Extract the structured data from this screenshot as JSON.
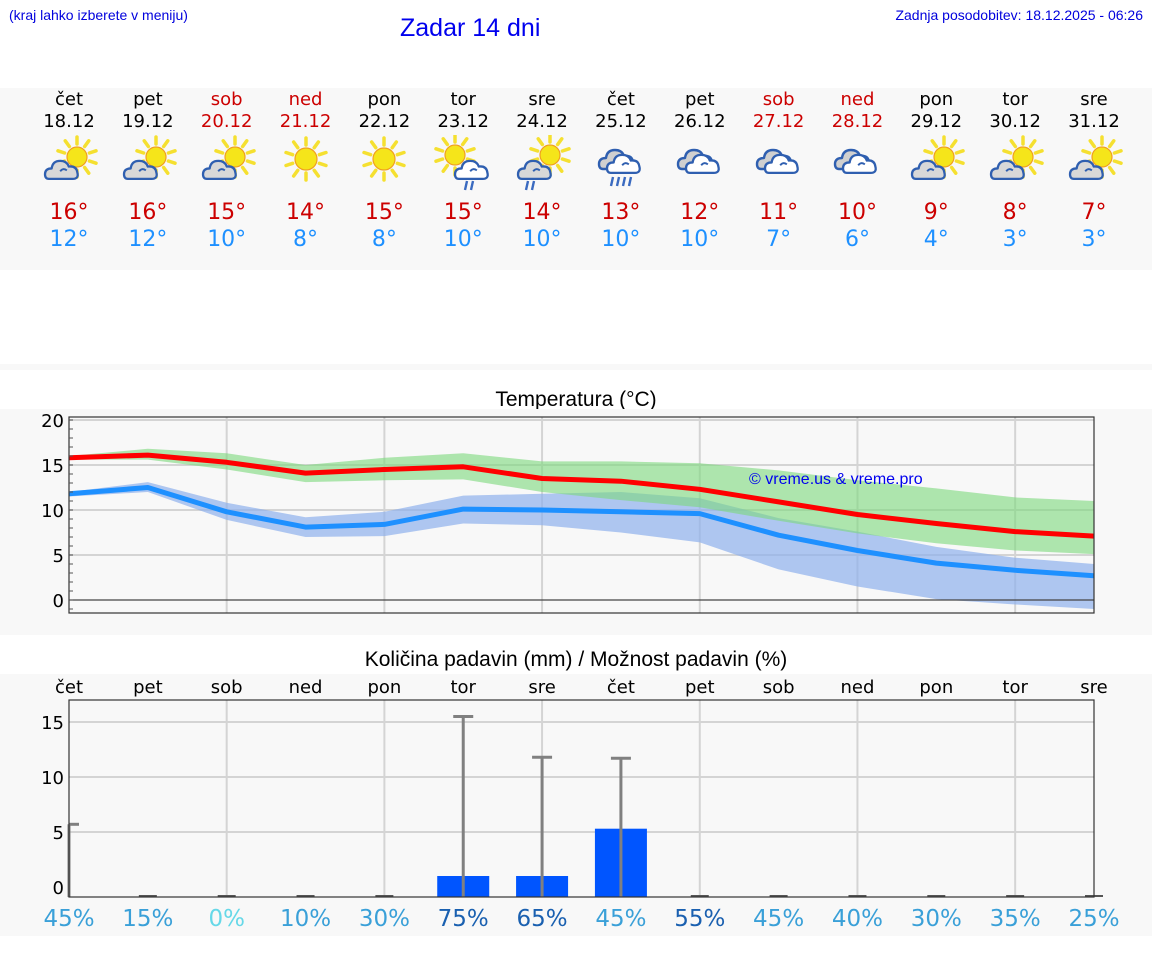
{
  "header": {
    "hint": "(kraj lahko izberete v meniju)",
    "title": "Zadar 14 dni",
    "updated": "Zadnja posodobitev: 18.12.2025 - 06:26"
  },
  "days": [
    {
      "name": "čet",
      "date": "18.12",
      "weekend": false,
      "icon": "partly-cloudy-icon",
      "max": "16°",
      "min": "12°"
    },
    {
      "name": "pet",
      "date": "19.12",
      "weekend": false,
      "icon": "partly-cloudy-icon",
      "max": "16°",
      "min": "12°"
    },
    {
      "name": "sob",
      "date": "20.12",
      "weekend": true,
      "icon": "partly-cloudy-icon",
      "max": "15°",
      "min": "10°"
    },
    {
      "name": "ned",
      "date": "21.12",
      "weekend": true,
      "icon": "sunny-icon",
      "max": "14°",
      "min": "8°"
    },
    {
      "name": "pon",
      "date": "22.12",
      "weekend": false,
      "icon": "sunny-icon",
      "max": "15°",
      "min": "8°"
    },
    {
      "name": "tor",
      "date": "23.12",
      "weekend": false,
      "icon": "sun-cloud-light-rain-icon",
      "max": "15°",
      "min": "10°"
    },
    {
      "name": "sre",
      "date": "24.12",
      "weekend": false,
      "icon": "partly-cloudy-light-rain-icon",
      "max": "14°",
      "min": "10°"
    },
    {
      "name": "čet",
      "date": "25.12",
      "weekend": false,
      "icon": "cloudy-rain-icon",
      "max": "13°",
      "min": "10°"
    },
    {
      "name": "pet",
      "date": "26.12",
      "weekend": false,
      "icon": "cloudy-icon",
      "max": "12°",
      "min": "10°"
    },
    {
      "name": "sob",
      "date": "27.12",
      "weekend": true,
      "icon": "cloudy-icon",
      "max": "11°",
      "min": "7°"
    },
    {
      "name": "ned",
      "date": "28.12",
      "weekend": true,
      "icon": "cloudy-icon",
      "max": "10°",
      "min": "6°"
    },
    {
      "name": "pon",
      "date": "29.12",
      "weekend": false,
      "icon": "partly-cloudy-icon",
      "max": "9°",
      "min": "4°"
    },
    {
      "name": "tor",
      "date": "30.12",
      "weekend": false,
      "icon": "partly-cloudy-icon",
      "max": "8°",
      "min": "3°"
    },
    {
      "name": "sre",
      "date": "31.12",
      "weekend": false,
      "icon": "partly-cloudy-icon",
      "max": "7°",
      "min": "3°"
    }
  ],
  "colors": {
    "max_temp": "#cc0000",
    "min_temp": "#1e90ff",
    "max_line": "#ff0000",
    "min_line": "#1e90ff",
    "max_band": "#a8e6a8",
    "min_band": "#a8c4f0",
    "overlap_band": "#7cc8a8",
    "precip_bar": "#0055ff",
    "error_bar": "#808080",
    "link_blue": "#0000ee"
  },
  "chart_data": [
    {
      "type": "line",
      "title": "Temperatura (°C)",
      "xlabel": "",
      "ylabel": "",
      "ylim": [
        -1.5,
        20
      ],
      "yticks": [
        0,
        5,
        10,
        15,
        20
      ],
      "grid": true,
      "watermark": "© vreme.us & vreme.pro",
      "categories": [
        "18.12",
        "19.12",
        "20.12",
        "21.12",
        "22.12",
        "23.12",
        "24.12",
        "25.12",
        "26.12",
        "27.12",
        "28.12",
        "29.12",
        "30.12",
        "31.12"
      ],
      "series": [
        {
          "name": "max",
          "color": "#ff0000",
          "values": [
            15.8,
            16.1,
            15.3,
            14.1,
            14.5,
            14.8,
            13.5,
            13.2,
            12.3,
            10.9,
            9.5,
            8.5,
            7.6,
            7.1
          ]
        },
        {
          "name": "min",
          "color": "#1e90ff",
          "values": [
            11.8,
            12.5,
            9.8,
            8.1,
            8.4,
            10.1,
            10.0,
            9.8,
            9.6,
            7.2,
            5.5,
            4.1,
            3.3,
            2.7
          ]
        }
      ],
      "bands": [
        {
          "name": "max-range",
          "color": "#a8e6a8",
          "upper": [
            16.0,
            16.8,
            16.3,
            15.0,
            15.8,
            16.3,
            15.4,
            15.4,
            15.2,
            14.4,
            13.3,
            12.4,
            11.4,
            11.0
          ],
          "lower": [
            15.6,
            15.6,
            14.5,
            13.1,
            13.3,
            13.4,
            12.0,
            11.1,
            10.3,
            8.8,
            7.4,
            6.3,
            5.5,
            5.1
          ]
        },
        {
          "name": "min-range",
          "color": "#a8c4f0",
          "upper": [
            12.0,
            13.1,
            10.8,
            9.2,
            9.8,
            11.6,
            11.8,
            12.0,
            11.3,
            9.1,
            7.6,
            5.9,
            4.7,
            4.0
          ],
          "lower": [
            11.5,
            12.0,
            8.9,
            7.0,
            7.1,
            8.5,
            8.3,
            7.5,
            6.4,
            3.4,
            1.5,
            0.1,
            -0.5,
            -1.0
          ]
        }
      ]
    },
    {
      "type": "bar",
      "title": "Količina padavin (mm) / Možnost padavin (%)",
      "xlabel": "",
      "ylabel": "",
      "ylim": [
        -0.9,
        17
      ],
      "yticks": [
        0,
        5,
        10,
        15
      ],
      "grid": true,
      "categories": [
        "čet",
        "pet",
        "sob",
        "ned",
        "pon",
        "tor",
        "sre",
        "čet",
        "pet",
        "sob",
        "ned",
        "pon",
        "tor",
        "sre"
      ],
      "values": [
        0,
        0,
        0,
        0,
        0,
        1.0,
        1.0,
        5.3,
        0,
        0,
        0,
        0,
        0,
        0
      ],
      "error_max": [
        5.7,
        0,
        0,
        0,
        0,
        15.5,
        11.8,
        11.7,
        0,
        0,
        0,
        0,
        0,
        0
      ],
      "probability": [
        "45%",
        "15%",
        "0%",
        "10%",
        "30%",
        "75%",
        "65%",
        "45%",
        "55%",
        "45%",
        "40%",
        "30%",
        "35%",
        "25%"
      ],
      "probability_colors": [
        "#3aa0d8",
        "#3aa0d8",
        "#66d8e8",
        "#3aa0d8",
        "#3aa0d8",
        "#1a60b0",
        "#1a60b0",
        "#3aa0d8",
        "#1a60b0",
        "#3aa0d8",
        "#3aa0d8",
        "#3aa0d8",
        "#3aa0d8",
        "#3aa0d8"
      ]
    }
  ]
}
